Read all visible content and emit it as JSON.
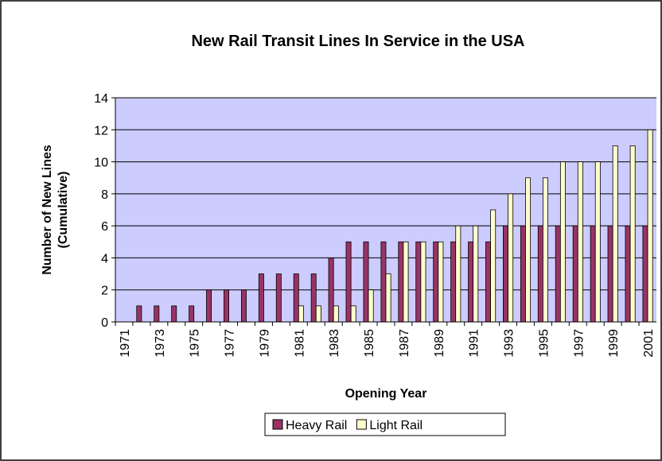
{
  "chart_data": {
    "type": "bar",
    "title": "New Rail Transit Lines In Service in the USA",
    "x_label": "Opening Year",
    "y_label_lines": [
      "Number of New Lines",
      "(Cumulative)"
    ],
    "categories": [
      "1971",
      null,
      "1973",
      null,
      "1975",
      null,
      "1977",
      null,
      "1979",
      null,
      "1981",
      null,
      "1983",
      null,
      "1985",
      null,
      "1987",
      null,
      "1989",
      null,
      "1991",
      null,
      "1993",
      null,
      "1995",
      null,
      "1997",
      null,
      "1999",
      null,
      "2001"
    ],
    "series": [
      {
        "name": "Heavy Rail",
        "color": "#993366",
        "values": [
          0,
          1,
          1,
          1,
          1,
          2,
          2,
          2,
          3,
          3,
          3,
          3,
          4,
          5,
          5,
          5,
          5,
          5,
          5,
          5,
          5,
          5,
          6,
          6,
          6,
          6,
          6,
          6,
          6,
          6,
          6
        ]
      },
      {
        "name": "Light Rail",
        "color": "#ffffcc",
        "values": [
          0,
          0,
          0,
          0,
          0,
          0,
          0,
          0,
          0,
          0,
          1,
          1,
          1,
          1,
          2,
          3,
          5,
          5,
          5,
          6,
          6,
          7,
          8,
          9,
          9,
          10,
          10,
          10,
          11,
          11,
          12
        ]
      }
    ],
    "ylim": [
      0,
      14
    ],
    "yticks": [
      0,
      2,
      4,
      6,
      8,
      10,
      12,
      14
    ],
    "grid": true,
    "plot_background": "#ccccff",
    "legend": "bottom"
  }
}
